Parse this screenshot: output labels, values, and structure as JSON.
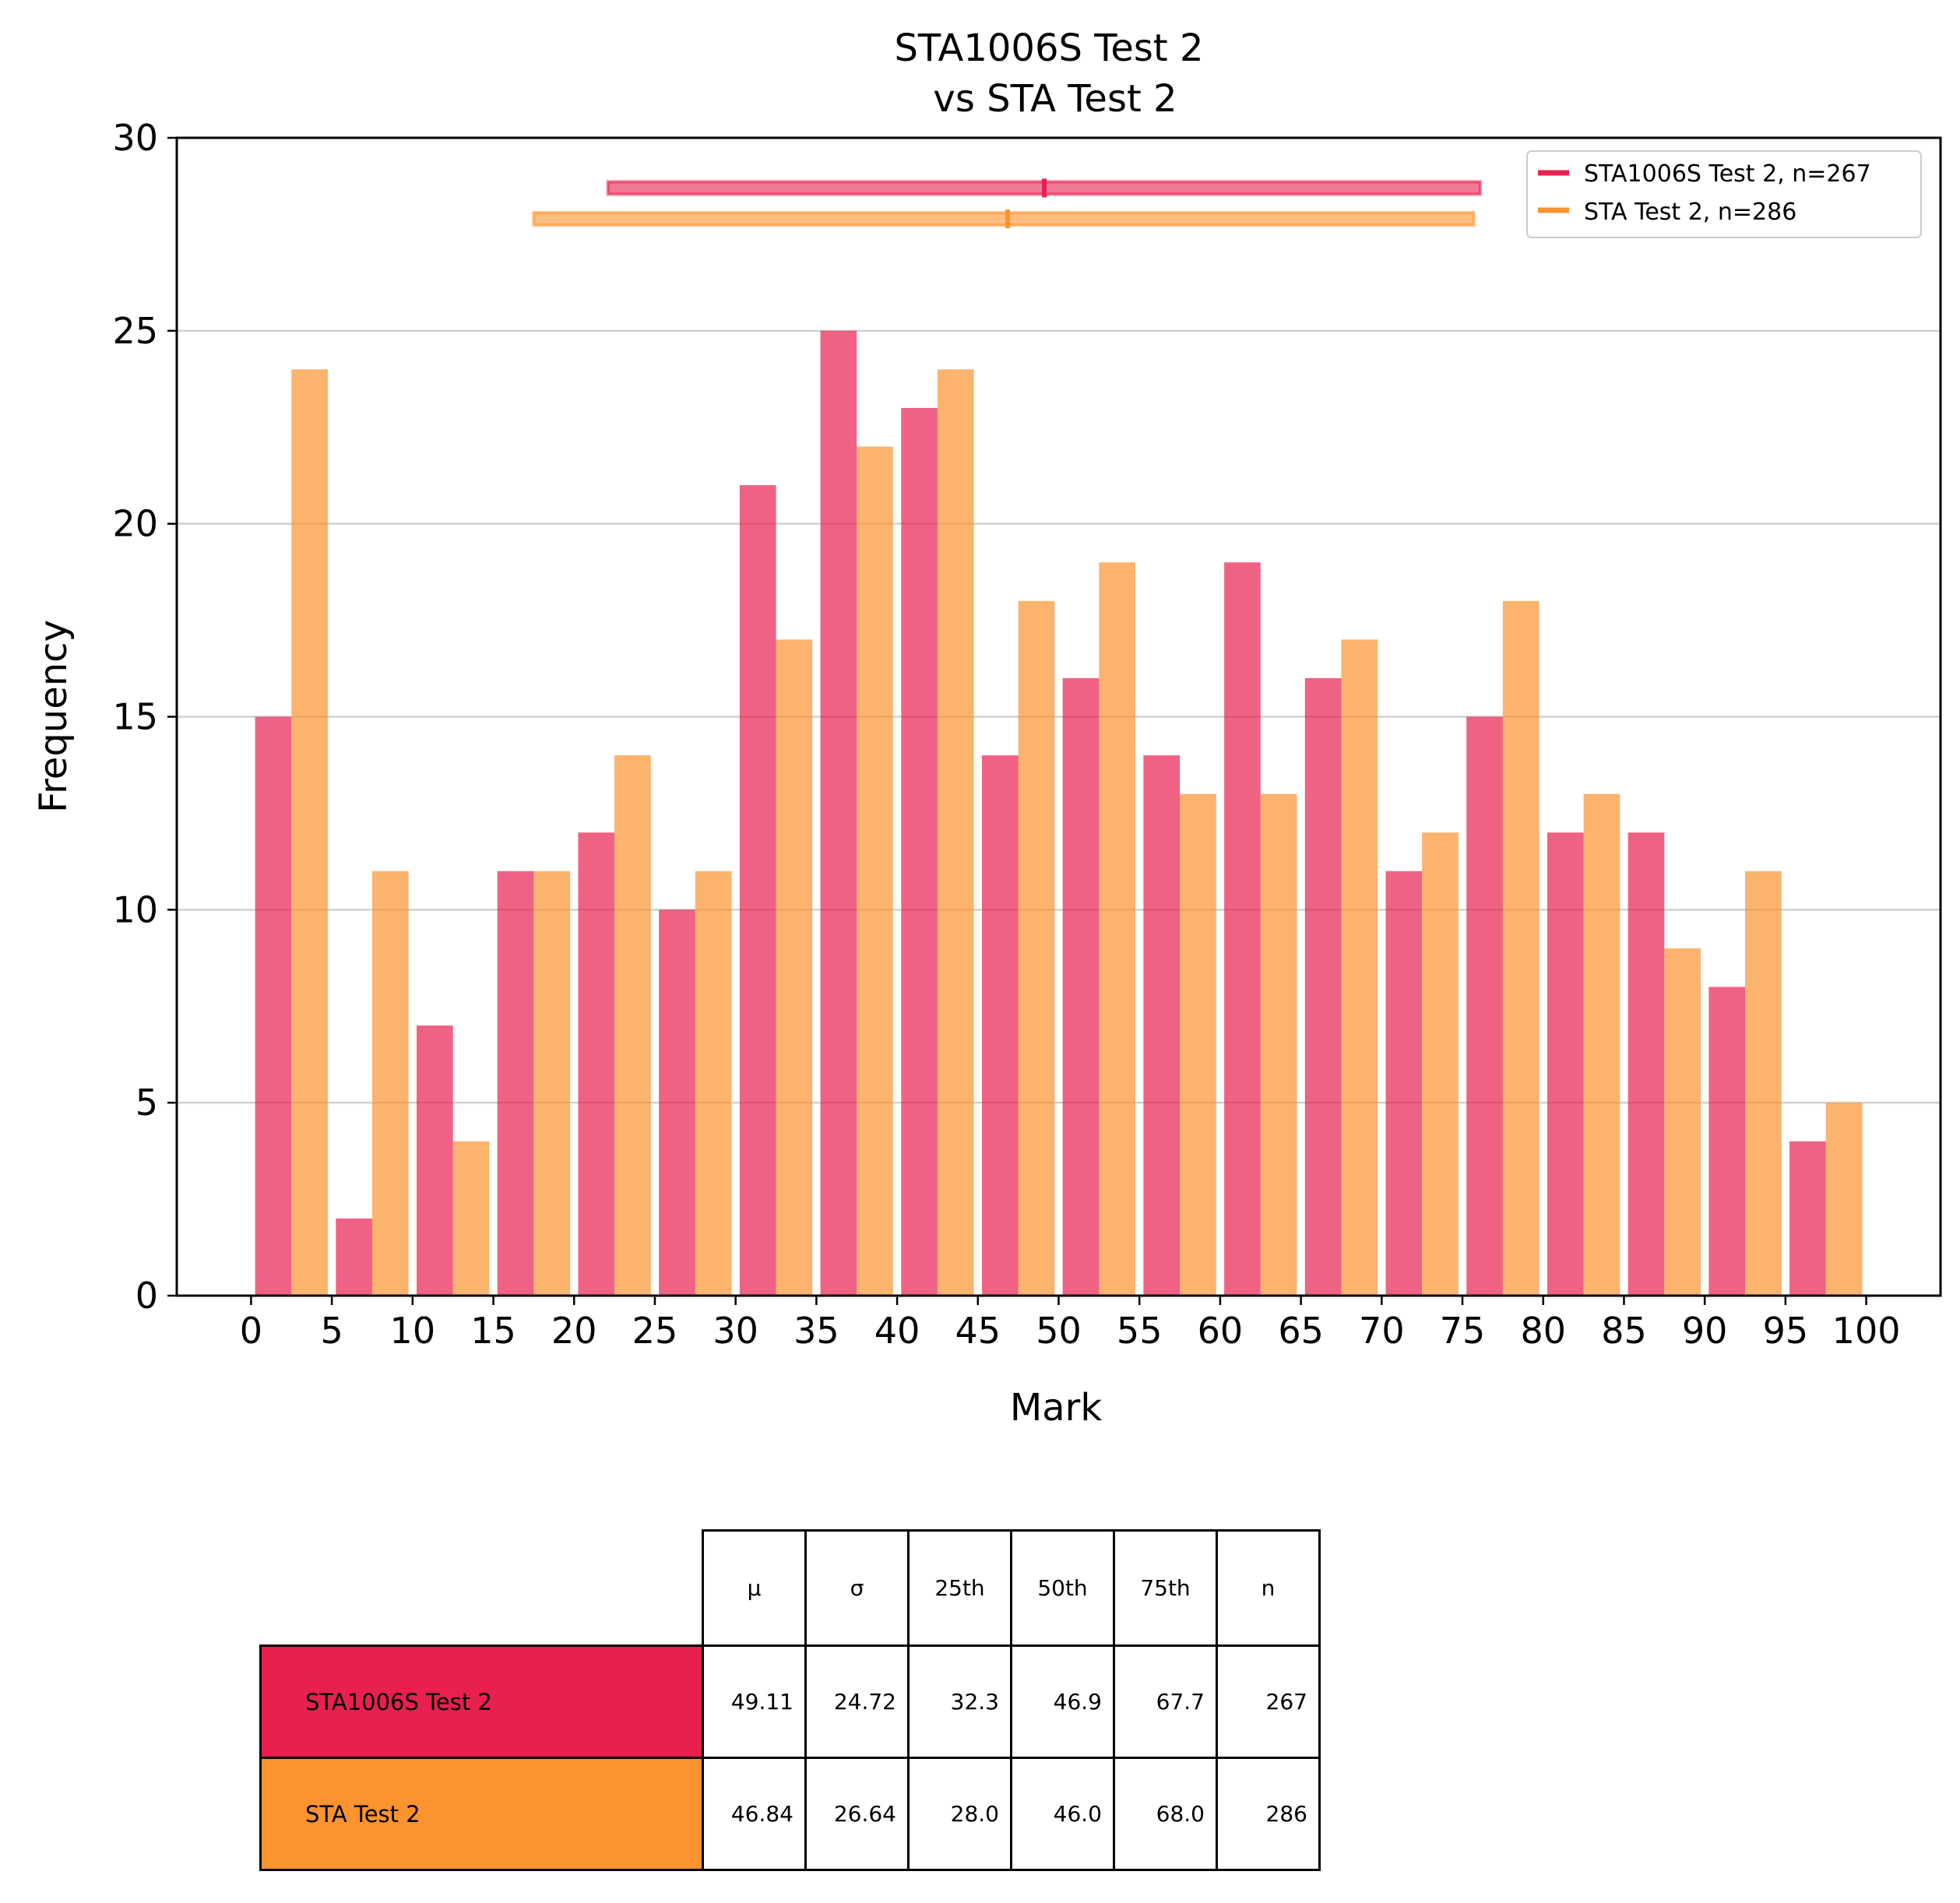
{
  "colors": {
    "series1": "#e8204f",
    "series2": "#fb932f",
    "grid": "#d0d0d0"
  },
  "chart_data": {
    "type": "bar",
    "title": "STA1006S Test 2\nvs STA Test 2",
    "title_lines": [
      "STA1006S Test 2",
      "vs STA Test 2"
    ],
    "xlabel": "Mark",
    "ylabel": "Frequency",
    "xlim": [
      -4.6,
      104.6
    ],
    "ylim": [
      0,
      30
    ],
    "xticks": [
      0,
      5,
      10,
      15,
      20,
      25,
      30,
      35,
      40,
      45,
      50,
      55,
      60,
      65,
      70,
      75,
      80,
      85,
      90,
      95,
      100
    ],
    "yticks": [
      0,
      5,
      10,
      15,
      20,
      25,
      30
    ],
    "bin_edges": [
      0,
      5,
      10,
      15,
      20,
      25,
      30,
      35,
      40,
      45,
      50,
      55,
      60,
      65,
      70,
      75,
      80,
      85,
      90,
      95,
      100
    ],
    "grid": "y",
    "legend_position": "top-right",
    "series": [
      {
        "name": "STA1006S Test 2",
        "legend": "STA1006S Test 2, n=267",
        "values": [
          15,
          2,
          7,
          11,
          12,
          10,
          21,
          25,
          23,
          14,
          16,
          14,
          19,
          16,
          11,
          15,
          12,
          12,
          8,
          4
        ],
        "range_bar": {
          "y": 28.7,
          "from": 22.1,
          "to": 76.1,
          "center": 49.11
        }
      },
      {
        "name": "STA Test 2",
        "legend": "STA Test 2, n=286",
        "values": [
          24,
          11,
          4,
          11,
          14,
          11,
          17,
          22,
          24,
          18,
          19,
          13,
          13,
          17,
          12,
          18,
          13,
          9,
          11,
          5
        ],
        "range_bar": {
          "y": 27.9,
          "from": 17.5,
          "to": 75.7,
          "center": 46.84
        }
      }
    ]
  },
  "table": {
    "columns": [
      "μ",
      "σ",
      "25th",
      "50th",
      "75th",
      "n"
    ],
    "rows": [
      {
        "label": "STA1006S Test 2",
        "values": [
          "49.11",
          "24.72",
          "32.3",
          "46.9",
          "67.7",
          "267"
        ]
      },
      {
        "label": "STA Test 2",
        "values": [
          "46.84",
          "26.64",
          "28.0",
          "46.0",
          "68.0",
          "286"
        ]
      }
    ]
  }
}
